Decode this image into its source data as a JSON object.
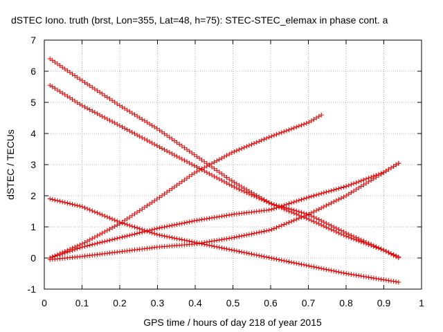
{
  "chart_data": {
    "type": "scatter",
    "title": "dSTEC Iono. truth (brst, Lon=355, Lat=48, h=75): STEC-STEC_elemax in phase cont. a",
    "xlabel": "GPS time / hours of day 218 of year 2015",
    "ylabel": "dSTEC  / TECUs",
    "xlim": [
      0,
      1
    ],
    "ylim": [
      -1,
      7
    ],
    "xticks": [
      "0",
      "0.1",
      "0.2",
      "0.3",
      "0.4",
      "0.5",
      "0.6",
      "0.7",
      "0.8",
      "0.9",
      "1"
    ],
    "yticks": [
      "-1",
      "0",
      "1",
      "2",
      "3",
      "4",
      "5",
      "6",
      "7"
    ],
    "grid": true,
    "marker": "+",
    "color": "#e00000",
    "series": [
      {
        "x": [
          0.015,
          0.1,
          0.2,
          0.3,
          0.4,
          0.5,
          0.6,
          0.7,
          0.8,
          0.9,
          0.94
        ],
        "y": [
          6.4,
          5.7,
          4.9,
          4.15,
          3.3,
          2.45,
          1.75,
          1.25,
          0.7,
          0.25,
          0.03
        ]
      },
      {
        "x": [
          0.015,
          0.1,
          0.2,
          0.3,
          0.4,
          0.5,
          0.6,
          0.7,
          0.8,
          0.9,
          0.94
        ],
        "y": [
          5.55,
          4.9,
          4.25,
          3.6,
          2.95,
          2.3,
          1.75,
          1.4,
          0.8,
          0.25,
          0.0
        ]
      },
      {
        "x": [
          0.015,
          0.1,
          0.2,
          0.3,
          0.4,
          0.5,
          0.6,
          0.7,
          0.735
        ],
        "y": [
          0.0,
          0.45,
          1.1,
          1.9,
          2.75,
          3.4,
          3.9,
          4.35,
          4.6
        ]
      },
      {
        "x": [
          0.015,
          0.1,
          0.2,
          0.3,
          0.4,
          0.5,
          0.6,
          0.7,
          0.8,
          0.9,
          0.94
        ],
        "y": [
          1.9,
          1.65,
          1.15,
          0.75,
          0.5,
          0.25,
          0.0,
          -0.25,
          -0.5,
          -0.7,
          -0.78
        ]
      },
      {
        "x": [
          0.015,
          0.1,
          0.2,
          0.3,
          0.4,
          0.5,
          0.6,
          0.7,
          0.8,
          0.9,
          0.94
        ],
        "y": [
          0.0,
          0.35,
          0.65,
          0.95,
          1.2,
          1.4,
          1.55,
          1.95,
          2.3,
          2.75,
          3.05
        ]
      },
      {
        "x": [
          0.015,
          0.1,
          0.2,
          0.3,
          0.4,
          0.5,
          0.6,
          0.7,
          0.8,
          0.9,
          0.94
        ],
        "y": [
          -0.05,
          0.05,
          0.2,
          0.35,
          0.45,
          0.65,
          0.9,
          1.4,
          2.0,
          2.75,
          3.05
        ]
      }
    ]
  }
}
